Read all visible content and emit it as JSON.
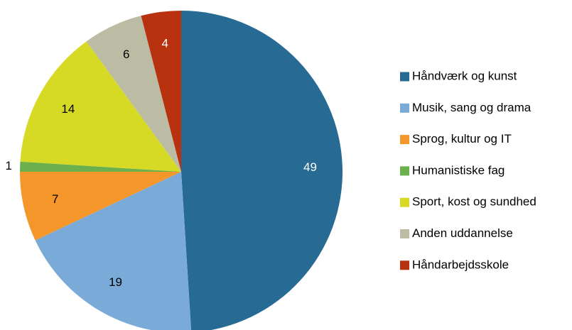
{
  "chart_data": {
    "type": "pie",
    "categories": [
      "Håndværk og kunst",
      "Musik, sang og drama",
      "Sprog, kultur og IT",
      "Humanistiske fag",
      "Sport, kost og sundhed",
      "Anden uddannelse",
      "Håndarbejdsskole"
    ],
    "values": [
      49,
      19,
      7,
      1,
      14,
      6,
      4
    ],
    "colors": [
      "#276a93",
      "#7aaad8",
      "#f5962a",
      "#6ab04c",
      "#d6da25",
      "#bcbca4",
      "#b83210"
    ],
    "legend": "right"
  }
}
